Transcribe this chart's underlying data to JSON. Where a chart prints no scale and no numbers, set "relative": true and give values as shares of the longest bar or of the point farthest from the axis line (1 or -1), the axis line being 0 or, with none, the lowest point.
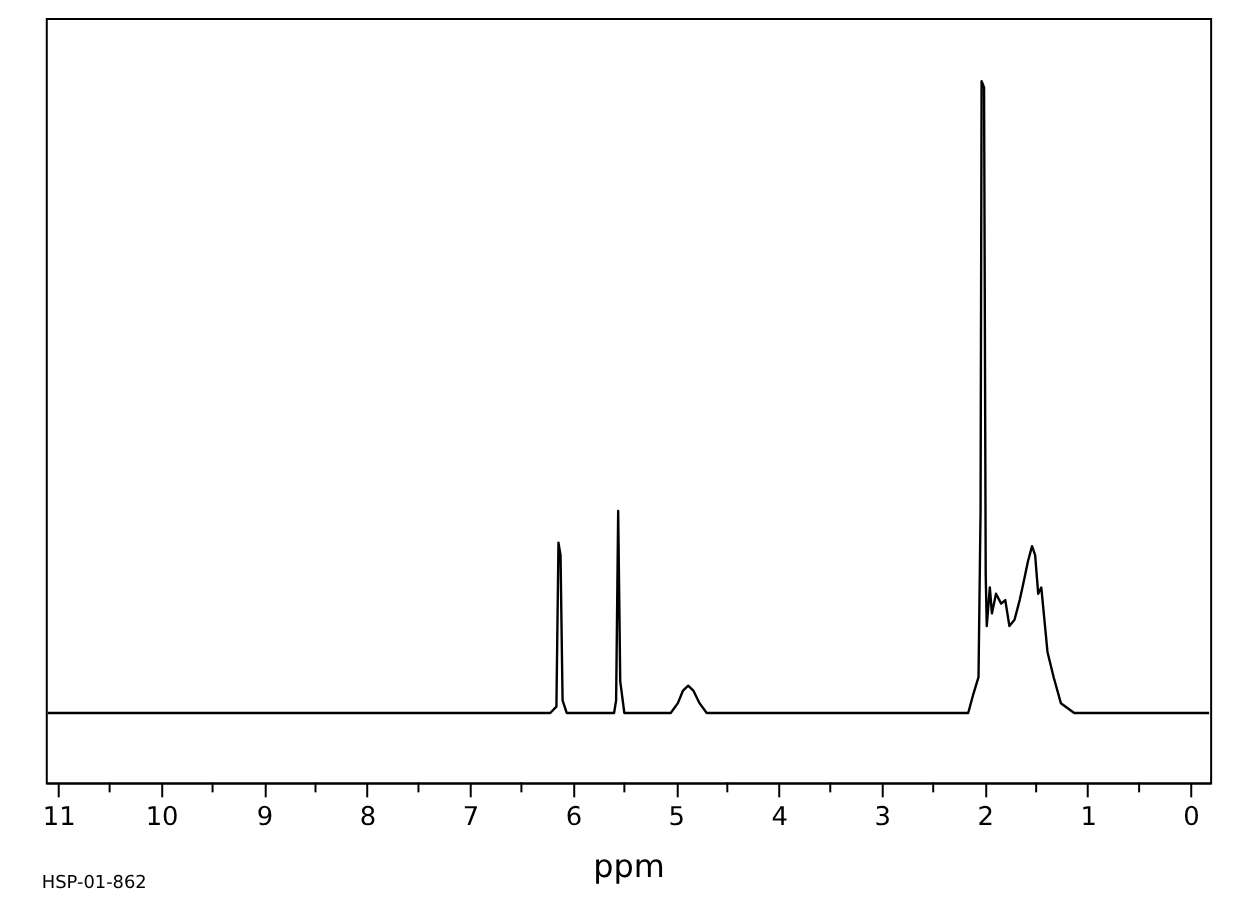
{
  "chart_data": {
    "type": "line",
    "relative": true,
    "xlabel": "ppm",
    "tick_labels": "x",
    "grid": false,
    "marker": "none",
    "line_style": "solid",
    "annotations": [
      "HSP-01-862"
    ],
    "xlim": [
      11.12,
      -0.19
    ],
    "xticks": [
      11,
      {
        "value": 10.5,
        "label": null
      },
      10,
      {
        "value": 9.5,
        "label": null
      },
      9,
      {
        "value": 8.5,
        "label": null
      },
      8,
      {
        "value": 7.5,
        "label": null
      },
      7,
      {
        "value": 6.5,
        "label": null
      },
      6,
      {
        "value": 5.5,
        "label": null
      },
      5,
      {
        "value": 4.5,
        "label": null
      },
      4,
      {
        "value": 3.5,
        "label": null
      },
      3,
      {
        "value": 2.5,
        "label": null
      },
      2,
      {
        "value": 1.5,
        "label": null
      },
      1,
      {
        "value": 0.5,
        "label": null
      },
      0
    ],
    "series": [
      {
        "color": "#000000",
        "x": [
          11.1,
          9.0,
          7.0,
          6.22,
          6.16,
          6.14,
          6.12,
          6.1,
          6.06,
          5.6,
          5.58,
          5.56,
          5.54,
          5.5,
          5.05,
          4.98,
          4.93,
          4.88,
          4.83,
          4.77,
          4.7,
          3.0,
          2.16,
          2.11,
          2.06,
          2.04,
          2.03,
          2.006,
          1.99,
          1.98,
          1.95,
          1.93,
          1.89,
          1.84,
          1.8,
          1.76,
          1.71,
          1.66,
          1.62,
          1.58,
          1.54,
          1.51,
          1.48,
          1.45,
          1.42,
          1.39,
          1.33,
          1.26,
          1.13,
          0.5,
          -0.18
        ],
        "values": [
          0.099,
          0.099,
          0.099,
          0.099,
          0.108,
          0.342,
          0.324,
          0.117,
          0.099,
          0.099,
          0.117,
          0.387,
          0.144,
          0.099,
          0.099,
          0.113,
          0.131,
          0.138,
          0.131,
          0.113,
          0.099,
          0.099,
          0.099,
          0.126,
          0.15,
          0.387,
          1.0,
          0.991,
          0.296,
          0.223,
          0.278,
          0.241,
          0.269,
          0.255,
          0.26,
          0.223,
          0.232,
          0.26,
          0.287,
          0.315,
          0.337,
          0.324,
          0.269,
          0.278,
          0.232,
          0.186,
          0.15,
          0.113,
          0.099,
          0.099,
          0.099
        ]
      }
    ]
  }
}
